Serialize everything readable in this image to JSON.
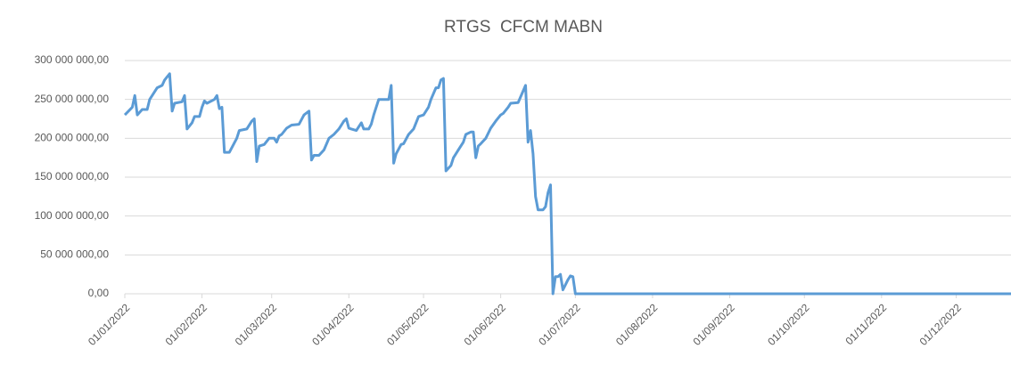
{
  "chart_data": {
    "type": "line",
    "title": "RTGS  CFCM MABN",
    "x": [
      "2022-01-01",
      "2022-01-04",
      "2022-01-05",
      "2022-01-06",
      "2022-01-08",
      "2022-01-10",
      "2022-01-11",
      "2022-01-14",
      "2022-01-16",
      "2022-01-17",
      "2022-01-19",
      "2022-01-20",
      "2022-01-21",
      "2022-01-24",
      "2022-01-25",
      "2022-01-26",
      "2022-01-28",
      "2022-01-29",
      "2022-01-31",
      "2022-02-01",
      "2022-02-02",
      "2022-02-03",
      "2022-02-06",
      "2022-02-07",
      "2022-02-08",
      "2022-02-09",
      "2022-02-10",
      "2022-02-12",
      "2022-02-15",
      "2022-02-16",
      "2022-02-19",
      "2022-02-21",
      "2022-02-22",
      "2022-02-23",
      "2022-02-24",
      "2022-02-26",
      "2022-02-28",
      "2022-03-02",
      "2022-03-03",
      "2022-03-04",
      "2022-03-05",
      "2022-03-07",
      "2022-03-09",
      "2022-03-12",
      "2022-03-14",
      "2022-03-16",
      "2022-03-17",
      "2022-03-18",
      "2022-03-20",
      "2022-03-22",
      "2022-03-24",
      "2022-03-26",
      "2022-03-28",
      "2022-03-30",
      "2022-03-31",
      "2022-04-01",
      "2022-04-02",
      "2022-04-04",
      "2022-04-06",
      "2022-04-07",
      "2022-04-09",
      "2022-04-10",
      "2022-04-11",
      "2022-04-13",
      "2022-04-15",
      "2022-04-17",
      "2022-04-18",
      "2022-04-19",
      "2022-04-20",
      "2022-04-22",
      "2022-04-23",
      "2022-04-25",
      "2022-04-27",
      "2022-04-29",
      "2022-05-01",
      "2022-05-03",
      "2022-05-04",
      "2022-05-06",
      "2022-05-07",
      "2022-05-08",
      "2022-05-09",
      "2022-05-10",
      "2022-05-12",
      "2022-05-13",
      "2022-05-15",
      "2022-05-17",
      "2022-05-18",
      "2022-05-20",
      "2022-05-21",
      "2022-05-22",
      "2022-05-23",
      "2022-05-24",
      "2022-05-26",
      "2022-05-28",
      "2022-05-30",
      "2022-06-01",
      "2022-06-02",
      "2022-06-04",
      "2022-06-05",
      "2022-06-08",
      "2022-06-11",
      "2022-06-12",
      "2022-06-13",
      "2022-06-14",
      "2022-06-15",
      "2022-06-16",
      "2022-06-18",
      "2022-06-19",
      "2022-06-20",
      "2022-06-21",
      "2022-06-22",
      "2022-06-23",
      "2022-06-24",
      "2022-06-25",
      "2022-06-26",
      "2022-06-28",
      "2022-06-29",
      "2022-06-30",
      "2022-07-01",
      "2022-12-23"
    ],
    "values": [
      230000000,
      240000000,
      255000000,
      230000000,
      237000000,
      237000000,
      250000000,
      265000000,
      268000000,
      275000000,
      283000000,
      235000000,
      245000000,
      247000000,
      255000000,
      212000000,
      220000000,
      228000000,
      228000000,
      240000000,
      248000000,
      245000000,
      250000000,
      255000000,
      238000000,
      240000000,
      182000000,
      182000000,
      200000000,
      210000000,
      212000000,
      222000000,
      225000000,
      170000000,
      190000000,
      192000000,
      200000000,
      200000000,
      195000000,
      203000000,
      205000000,
      213000000,
      217000000,
      218000000,
      230000000,
      235000000,
      172000000,
      178000000,
      178000000,
      185000000,
      200000000,
      205000000,
      212000000,
      222000000,
      225000000,
      213000000,
      212000000,
      210000000,
      220000000,
      212000000,
      212000000,
      218000000,
      230000000,
      250000000,
      250000000,
      250000000,
      268000000,
      168000000,
      180000000,
      192000000,
      193000000,
      205000000,
      212000000,
      228000000,
      230000000,
      240000000,
      250000000,
      265000000,
      265000000,
      275000000,
      277000000,
      158000000,
      165000000,
      175000000,
      185000000,
      195000000,
      205000000,
      208000000,
      208000000,
      175000000,
      190000000,
      193000000,
      200000000,
      213000000,
      222000000,
      230000000,
      232000000,
      240000000,
      245000000,
      246000000,
      268000000,
      195000000,
      210000000,
      180000000,
      125000000,
      108000000,
      108000000,
      112000000,
      130000000,
      140000000,
      0,
      22000000,
      22000000,
      25000000,
      5000000,
      18000000,
      23000000,
      22000000,
      0,
      0
    ],
    "color": "#5b9bd5",
    "xlim": [
      "2022-01-01",
      "2022-12-23"
    ],
    "xticks": [
      {
        "value": "2022-01-01",
        "label": "01/01/2022"
      },
      {
        "value": "2022-02-01",
        "label": "01/02/2022"
      },
      {
        "value": "2022-03-01",
        "label": "01/03/2022"
      },
      {
        "value": "2022-04-01",
        "label": "01/04/2022"
      },
      {
        "value": "2022-05-01",
        "label": "01/05/2022"
      },
      {
        "value": "2022-06-01",
        "label": "01/06/2022"
      },
      {
        "value": "2022-07-01",
        "label": "01/07/2022"
      },
      {
        "value": "2022-08-01",
        "label": "01/08/2022"
      },
      {
        "value": "2022-09-01",
        "label": "01/09/2022"
      },
      {
        "value": "2022-10-01",
        "label": "01/10/2022"
      },
      {
        "value": "2022-11-01",
        "label": "01/11/2022"
      },
      {
        "value": "2022-12-01",
        "label": "01/12/2022"
      }
    ],
    "ylim": [
      0,
      300000000
    ],
    "yticks": [
      {
        "value": 0,
        "label": "0,00"
      },
      {
        "value": 50000000,
        "label": "50 000 000,00"
      },
      {
        "value": 100000000,
        "label": "100 000 000,00"
      },
      {
        "value": 150000000,
        "label": "150 000 000,00"
      },
      {
        "value": 200000000,
        "label": "200 000 000,00"
      },
      {
        "value": 250000000,
        "label": "250 000 000,00"
      },
      {
        "value": 300000000,
        "label": "300 000 000,00"
      }
    ],
    "grid": true
  }
}
